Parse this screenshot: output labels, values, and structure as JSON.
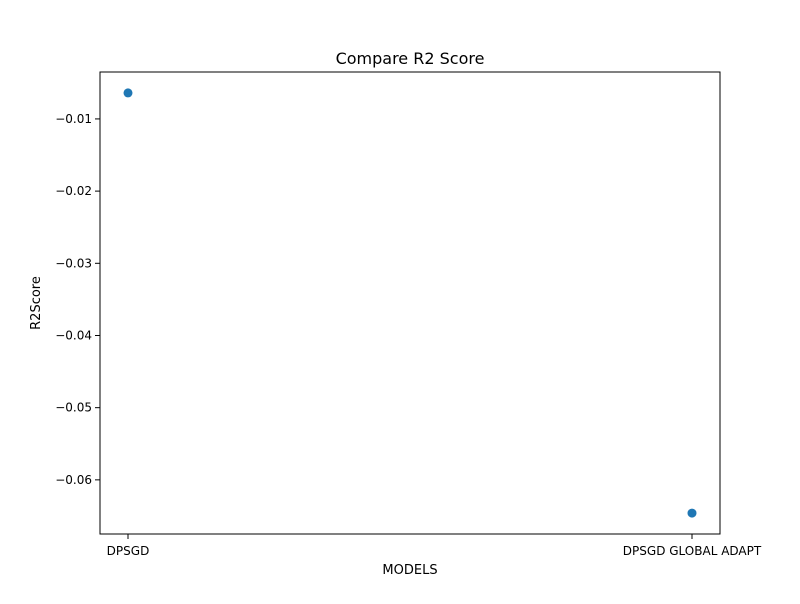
{
  "chart_data": {
    "type": "scatter",
    "title": "Compare R2 Score",
    "xlabel": "MODELS",
    "ylabel": "R2Score",
    "categories": [
      "DPSGD",
      "DPSGD GLOBAL ADAPT"
    ],
    "values": [
      -0.0064,
      -0.0646
    ],
    "y_ticks": [
      -0.01,
      -0.02,
      -0.03,
      -0.04,
      -0.05,
      -0.06
    ],
    "y_tick_labels": [
      "−0.01",
      "−0.02",
      "−0.03",
      "−0.04",
      "−0.05",
      "−0.06"
    ],
    "ylim": [
      -0.0675,
      -0.0035
    ],
    "grid": false,
    "marker_color": "#1f77b4"
  }
}
